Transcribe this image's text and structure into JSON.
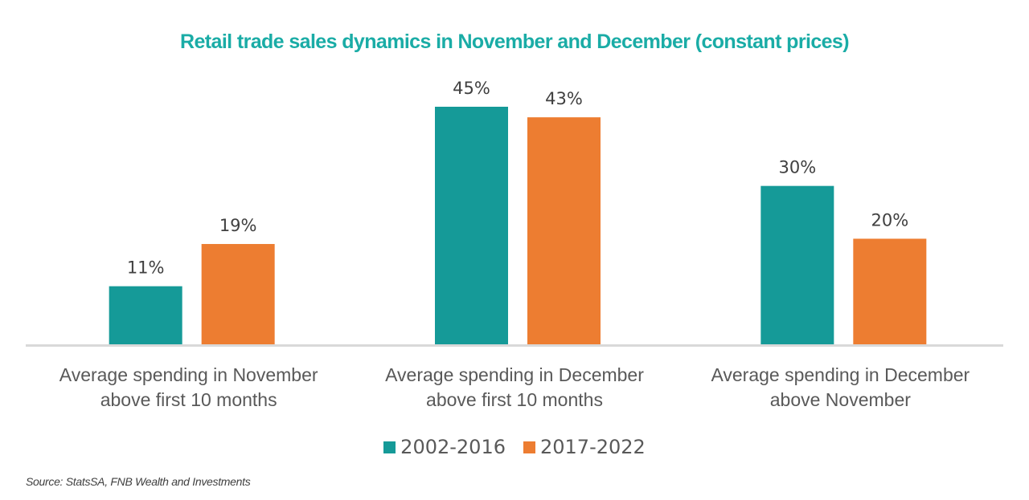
{
  "chart_data": {
    "type": "bar",
    "title": "Retail trade sales dynamics in November and December (constant prices)",
    "xlabel": "",
    "ylabel": "",
    "ylim": [
      0,
      45
    ],
    "grid": false,
    "legend_position": "bottom-center",
    "categories": [
      [
        "Average spending in November",
        "above first 10 months"
      ],
      [
        "Average spending in December",
        "above first 10 months"
      ],
      [
        "Average spending in December",
        "above November"
      ]
    ],
    "series": [
      {
        "name": "2002-2016",
        "color": "#159a98",
        "values": [
          11,
          45,
          30
        ],
        "labels": [
          "11%",
          "45%",
          "30%"
        ]
      },
      {
        "name": "2017-2022",
        "color": "#ed7d31",
        "values": [
          19,
          43,
          20
        ],
        "labels": [
          "19%",
          "43%",
          "20%"
        ]
      }
    ],
    "axis_color": "#d9d9d9",
    "source": "Source: StatsSA, FNB Wealth and Investments"
  }
}
